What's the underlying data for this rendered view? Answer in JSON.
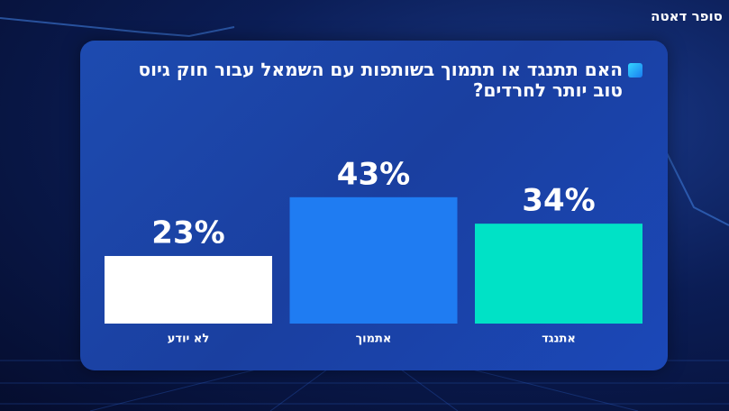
{
  "chart_data": {
    "type": "bar",
    "title": "האם תתנגד או תתמוך בשותפות עם השמאל עבור חוק גיוס טוב יותר לחרדים?",
    "logo": "סופר דאטה",
    "categories": [
      "לא יודע",
      "אתמוך",
      "אתנגד"
    ],
    "values": [
      23,
      43,
      34
    ],
    "value_labels": [
      "23%",
      "43%",
      "34%"
    ],
    "colors": [
      "#ffffff",
      "#1f7cf2",
      "#00e2c6"
    ]
  }
}
